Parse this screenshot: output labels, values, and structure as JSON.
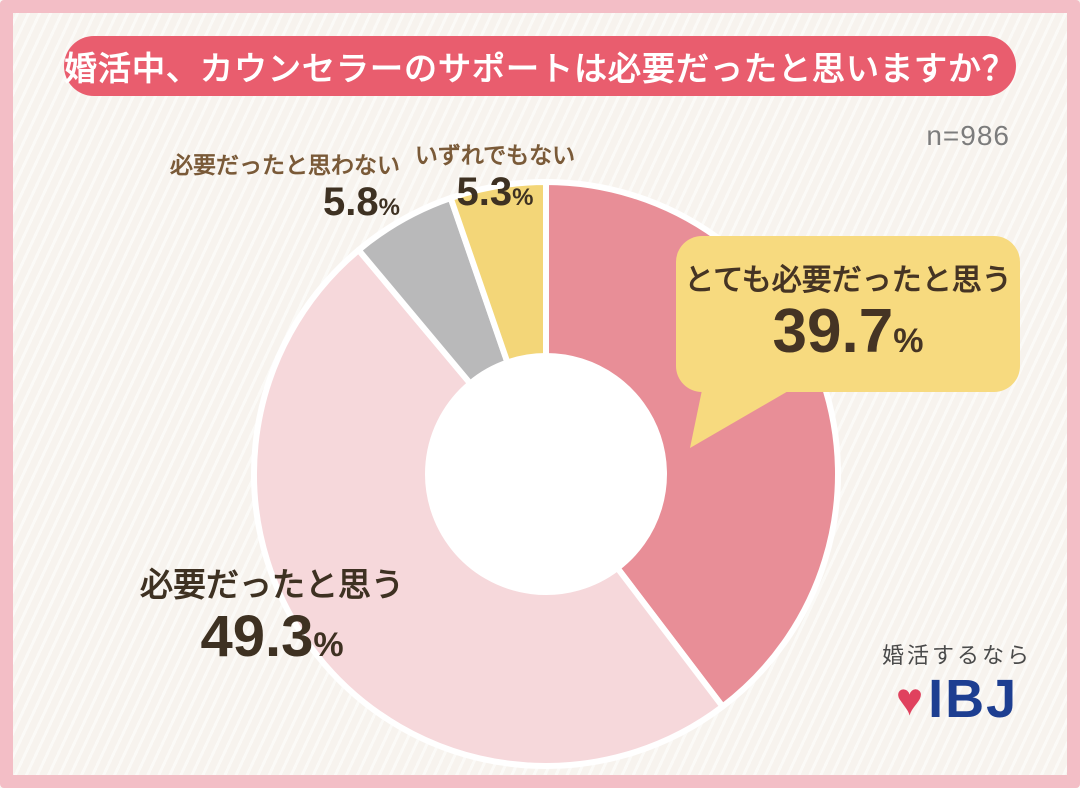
{
  "title": "婚活中、カウンセラーのサポートは必要だったと思いますか？",
  "sample_size": "n=986",
  "percent_sign": "%",
  "chart_data": {
    "type": "pie",
    "subtype": "donut",
    "title": "婚活中、カウンセラーのサポートは必要だったと思いますか？",
    "sample_size": 986,
    "start_angle_deg": 0,
    "direction": "clockwise",
    "legend_position": "labels-around",
    "slices": [
      {
        "id": "very-necessary",
        "label": "とても必要だったと思う",
        "value": 39.7,
        "display": "39.7",
        "color": "#e88e97"
      },
      {
        "id": "necessary",
        "label": "必要だったと思う",
        "value": 49.3,
        "display": "49.3",
        "color": "#f6d8db"
      },
      {
        "id": "not-necessary",
        "label": "必要だったと思わない",
        "value": 5.8,
        "display": "5.8",
        "color": "#b9b9ba"
      },
      {
        "id": "neither",
        "label": "いずれでもない",
        "value": 5.3,
        "display": "5.3",
        "color": "#f3d678"
      }
    ]
  },
  "logo": {
    "tagline": "婚活するなら",
    "brand": "IBJ",
    "brand_color": "#1d3e91",
    "heart_color": "#e0415e"
  },
  "colors": {
    "frame": "#f3bec6",
    "banner": "#e95d6e",
    "background": "#f7f3ee",
    "bubble": "#f7da7f",
    "label_brown": "#7a5a38",
    "number_dark": "#3e3122"
  }
}
